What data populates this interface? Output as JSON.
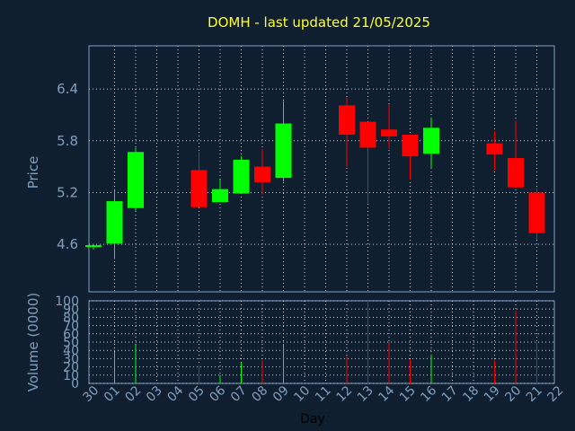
{
  "chart_data": {
    "type": "candlestick",
    "title": "DOMH - last updated 21/05/2025",
    "xlabel": "Day",
    "price_panel": {
      "ylabel": "Price",
      "yticks": [
        4.6,
        5.2,
        5.8,
        6.4
      ],
      "ylim": [
        4.05,
        6.9
      ]
    },
    "volume_panel": {
      "ylabel": "Volume (0000)",
      "yticks": [
        0,
        10,
        20,
        30,
        40,
        50,
        60,
        70,
        80,
        90,
        100
      ],
      "ylim": [
        0,
        100
      ]
    },
    "categories": [
      "30",
      "01",
      "02",
      "03",
      "04",
      "05",
      "06",
      "07",
      "08",
      "09",
      "10",
      "11",
      "12",
      "13",
      "14",
      "15",
      "16",
      "17",
      "18",
      "19",
      "20",
      "21",
      "22"
    ],
    "candles": [
      {
        "day": "30",
        "open": 4.57,
        "high": 4.6,
        "low": 4.54,
        "close": 4.59,
        "volume": 0
      },
      {
        "day": "01",
        "open": 4.61,
        "high": 5.24,
        "low": 4.43,
        "close": 5.1,
        "volume": 38
      },
      {
        "day": "02",
        "open": 5.02,
        "high": 5.72,
        "low": 4.99,
        "close": 5.67,
        "volume": 47
      },
      {
        "day": "05",
        "open": 5.46,
        "high": 5.67,
        "low": 5.03,
        "close": 5.03,
        "volume": 22
      },
      {
        "day": "06",
        "open": 5.09,
        "high": 5.35,
        "low": 5.09,
        "close": 5.24,
        "volume": 10
      },
      {
        "day": "07",
        "open": 5.19,
        "high": 5.62,
        "low": 5.19,
        "close": 5.58,
        "volume": 25
      },
      {
        "day": "08",
        "open": 5.5,
        "high": 5.7,
        "low": 5.18,
        "close": 5.32,
        "volume": 28
      },
      {
        "day": "09",
        "open": 5.37,
        "high": 6.26,
        "low": 5.33,
        "close": 6.0,
        "volume": 48
      },
      {
        "day": "12",
        "open": 6.21,
        "high": 6.3,
        "low": 5.5,
        "close": 5.87,
        "volume": 33
      },
      {
        "day": "13",
        "open": 6.02,
        "high": 6.02,
        "low": 5.08,
        "close": 5.72,
        "volume": 100
      },
      {
        "day": "14",
        "open": 5.93,
        "high": 6.22,
        "low": 5.71,
        "close": 5.85,
        "volume": 50
      },
      {
        "day": "15",
        "open": 5.87,
        "high": 5.87,
        "low": 5.35,
        "close": 5.62,
        "volume": 29
      },
      {
        "day": "16",
        "open": 5.65,
        "high": 6.07,
        "low": 5.48,
        "close": 5.95,
        "volume": 35
      },
      {
        "day": "19",
        "open": 5.77,
        "high": 5.91,
        "low": 5.46,
        "close": 5.64,
        "volume": 28
      },
      {
        "day": "20",
        "open": 5.6,
        "high": 6.03,
        "low": 5.25,
        "close": 5.26,
        "volume": 88
      },
      {
        "day": "21",
        "open": 5.2,
        "high": 5.25,
        "low": 4.66,
        "close": 4.73,
        "volume": 50
      }
    ]
  }
}
